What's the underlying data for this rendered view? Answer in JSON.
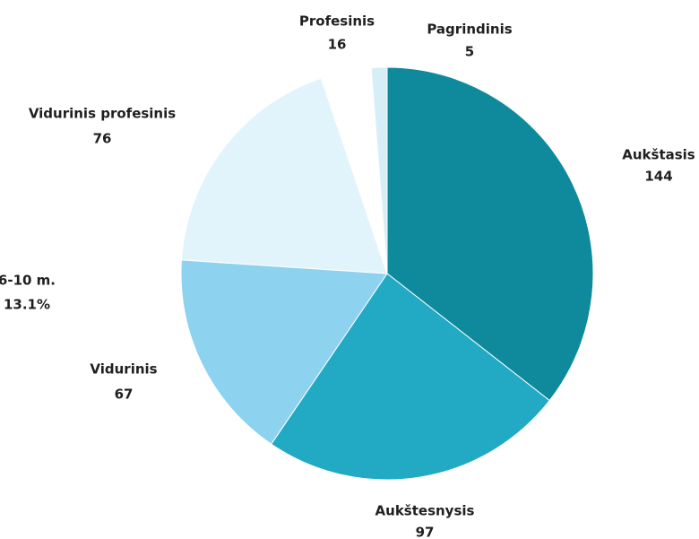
{
  "chart_data": {
    "type": "pie",
    "categories": [
      "Aukštasis",
      "Aukštesnysis",
      "Vidurinis",
      "Vidurinis profesinis",
      "Profesinis",
      "Pagrindinis"
    ],
    "values": [
      144,
      97,
      67,
      76,
      16,
      5
    ],
    "colors": [
      "#0f8a9c",
      "#22aac4",
      "#8dd3f0",
      "#e2f4fb",
      "#ffffff",
      "#d6eef8"
    ],
    "annotations": [
      "6-10 m.",
      "13.1%"
    ]
  }
}
